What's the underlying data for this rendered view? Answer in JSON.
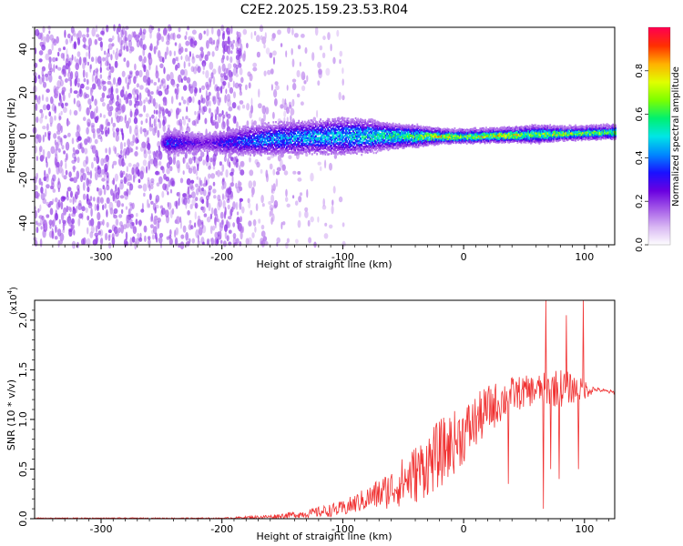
{
  "title": "C2E2.2025.159.23.53.R04",
  "chart_data": [
    {
      "type": "heatmap",
      "xlabel": "Height of straight line (km)",
      "ylabel": "Frequency (Hz)",
      "xlim": [
        -355,
        125
      ],
      "ylim": [
        -50,
        50
      ],
      "xticks": [
        -300,
        -200,
        -100,
        0,
        100
      ],
      "yticks": [
        -40,
        -20,
        0,
        20,
        40
      ],
      "colorbar": {
        "label": "Normalized spectral amplitude",
        "range": [
          0.0,
          1.0
        ],
        "ticks": [
          "0.0",
          "0.2",
          "0.4",
          "0.6",
          "0.8"
        ],
        "tick_values": [
          0.0,
          0.2,
          0.4,
          0.6,
          0.8
        ],
        "colormap": [
          "#ffffff",
          "#d9b8f3",
          "#a45ae8",
          "#6a00e0",
          "#1a10ff",
          "#0087ff",
          "#00e6e6",
          "#00f070",
          "#7cff00",
          "#e0ff00",
          "#ffb000",
          "#ff3000",
          "#ff0050"
        ]
      },
      "regions": [
        {
          "x": [
            -355,
            -185
          ],
          "freq_halfwidth": 50,
          "amplitude": [
            0.02,
            0.12
          ],
          "density": 0.55
        },
        {
          "x": [
            -185,
            -140
          ],
          "freq_halfwidth": 50,
          "amplitude": [
            0.0,
            0.05
          ],
          "density": 0.25
        },
        {
          "x": [
            -140,
            -100
          ],
          "freq_halfwidth": 45,
          "amplitude": [
            0.0,
            0.04
          ],
          "density": 0.12
        }
      ],
      "ridge": [
        {
          "x": -250,
          "halfwidth": 4,
          "amplitude": 0.15
        },
        {
          "x": -245,
          "halfwidth": 6,
          "amplitude": 0.3
        },
        {
          "x": -215,
          "halfwidth": 5,
          "amplitude": 0.15
        },
        {
          "x": -185,
          "halfwidth": 7,
          "amplitude": 0.3
        },
        {
          "x": -160,
          "halfwidth": 8,
          "amplitude": 0.35
        },
        {
          "x": -130,
          "halfwidth": 8,
          "amplitude": 0.4
        },
        {
          "x": -100,
          "halfwidth": 9,
          "amplitude": 0.42
        },
        {
          "x": -80,
          "halfwidth": 8,
          "amplitude": 0.45
        },
        {
          "x": -60,
          "halfwidth": 6,
          "amplitude": 0.5
        },
        {
          "x": -40,
          "halfwidth": 5,
          "amplitude": 0.55
        },
        {
          "x": -20,
          "halfwidth": 3,
          "amplitude": 0.75
        },
        {
          "x": 0,
          "halfwidth": 3,
          "amplitude": 0.6
        },
        {
          "x": 20,
          "halfwidth": 3,
          "amplitude": 0.7
        },
        {
          "x": 40,
          "halfwidth": 3,
          "amplitude": 0.7
        },
        {
          "x": 60,
          "halfwidth": 4,
          "amplitude": 0.6
        },
        {
          "x": 80,
          "halfwidth": 3,
          "amplitude": 0.65
        },
        {
          "x": 100,
          "halfwidth": 3,
          "amplitude": 0.6
        },
        {
          "x": 125,
          "halfwidth": 3,
          "amplitude": 0.55
        }
      ],
      "ridge_center": [
        {
          "x": -250,
          "freq": -3
        },
        {
          "x": -200,
          "freq": -3
        },
        {
          "x": -150,
          "freq": -1
        },
        {
          "x": -100,
          "freq": 0
        },
        {
          "x": -50,
          "freq": 0
        },
        {
          "x": 0,
          "freq": 0
        },
        {
          "x": 125,
          "freq": 2
        }
      ]
    },
    {
      "type": "line",
      "xlabel": "Height of straight line (km)",
      "ylabel": "SNR (10 * v/v)",
      "scale_label": "(x10",
      "scale_exponent": "4",
      "xlim": [
        -355,
        125
      ],
      "ylim": [
        0.0,
        2.2
      ],
      "xticks": [
        -300,
        -200,
        -100,
        0,
        100
      ],
      "yticks": [
        "0.0",
        "0.5",
        "1.0",
        "1.5",
        "2.0"
      ],
      "ytick_values": [
        0.0,
        0.5,
        1.0,
        1.5,
        2.0
      ],
      "color": "#f03030",
      "envelope": [
        {
          "x": -355,
          "mean": 0.005,
          "noise": 0.005
        },
        {
          "x": -200,
          "mean": 0.005,
          "noise": 0.005
        },
        {
          "x": -160,
          "mean": 0.02,
          "noise": 0.02
        },
        {
          "x": -130,
          "mean": 0.05,
          "noise": 0.04
        },
        {
          "x": -100,
          "mean": 0.1,
          "noise": 0.08
        },
        {
          "x": -80,
          "mean": 0.2,
          "noise": 0.12
        },
        {
          "x": -60,
          "mean": 0.3,
          "noise": 0.2
        },
        {
          "x": -40,
          "mean": 0.45,
          "noise": 0.3
        },
        {
          "x": -20,
          "mean": 0.65,
          "noise": 0.35
        },
        {
          "x": 0,
          "mean": 0.85,
          "noise": 0.3
        },
        {
          "x": 20,
          "mean": 1.1,
          "noise": 0.25
        },
        {
          "x": 40,
          "mean": 1.25,
          "noise": 0.18
        },
        {
          "x": 60,
          "mean": 1.3,
          "noise": 0.15
        },
        {
          "x": 80,
          "mean": 1.32,
          "noise": 0.2
        },
        {
          "x": 100,
          "mean": 1.3,
          "noise": 0.1
        },
        {
          "x": 110,
          "mean": 1.3,
          "noise": 0.02
        },
        {
          "x": 125,
          "mean": 1.27,
          "noise": 0.02
        }
      ],
      "spikes": [
        {
          "x": 37,
          "y": 0.35
        },
        {
          "x": 66,
          "y": 0.1
        },
        {
          "x": 68,
          "y": 2.2
        },
        {
          "x": 72,
          "y": 0.5
        },
        {
          "x": 79,
          "y": 0.4
        },
        {
          "x": 85,
          "y": 2.05
        },
        {
          "x": 95,
          "y": 0.5
        },
        {
          "x": 99,
          "y": 2.2
        }
      ]
    }
  ]
}
